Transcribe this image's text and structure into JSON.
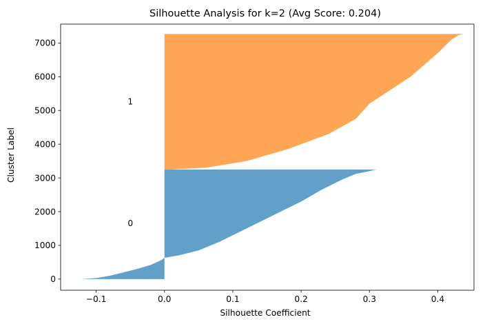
{
  "chart_data": {
    "type": "area",
    "title": "Silhouette Analysis for k=2 (Avg Score: 0.204)",
    "xlabel": "Silhouette Coefficient",
    "ylabel": "Cluster Label",
    "xlim": [
      -0.152,
      0.453
    ],
    "ylim": [
      -330,
      7560
    ],
    "xticks": [
      -0.1,
      0.0,
      0.1,
      0.2,
      0.3,
      0.4
    ],
    "xtick_labels": [
      "−0.1",
      "0.0",
      "0.1",
      "0.2",
      "0.3",
      "0.4"
    ],
    "yticks": [
      0,
      1000,
      2000,
      3000,
      4000,
      5000,
      6000,
      7000
    ],
    "ytick_labels": [
      "0",
      "1000",
      "2000",
      "3000",
      "4000",
      "5000",
      "6000",
      "7000"
    ],
    "grid": false,
    "series": [
      {
        "name": "",
        "cluster_label": "0",
        "label_position": [
          -0.05,
          1650
        ],
        "color": "#1f77b4",
        "fill_opacity": 0.7,
        "y_range": [
          0,
          3250
        ],
        "points": [
          [
            -0.122,
            0
          ],
          [
            -0.1,
            30
          ],
          [
            -0.08,
            100
          ],
          [
            -0.06,
            200
          ],
          [
            -0.04,
            300
          ],
          [
            -0.02,
            420
          ],
          [
            -0.005,
            560
          ],
          [
            0.0,
            630
          ],
          [
            0.02,
            700
          ],
          [
            0.05,
            850
          ],
          [
            0.08,
            1100
          ],
          [
            0.12,
            1500
          ],
          [
            0.16,
            1900
          ],
          [
            0.2,
            2300
          ],
          [
            0.23,
            2650
          ],
          [
            0.26,
            2950
          ],
          [
            0.28,
            3120
          ],
          [
            0.3,
            3200
          ],
          [
            0.31,
            3250
          ]
        ]
      },
      {
        "name": "",
        "cluster_label": "1",
        "label_position": [
          -0.05,
          5260
        ],
        "color": "#ff7f0e",
        "fill_opacity": 0.7,
        "y_range": [
          3250,
          7270
        ],
        "points": [
          [
            0.005,
            3250
          ],
          [
            0.06,
            3300
          ],
          [
            0.12,
            3500
          ],
          [
            0.18,
            3850
          ],
          [
            0.24,
            4300
          ],
          [
            0.28,
            4750
          ],
          [
            0.3,
            5200
          ],
          [
            0.33,
            5600
          ],
          [
            0.36,
            6000
          ],
          [
            0.38,
            6350
          ],
          [
            0.4,
            6700
          ],
          [
            0.42,
            7100
          ],
          [
            0.43,
            7230
          ],
          [
            0.438,
            7270
          ]
        ]
      }
    ]
  }
}
